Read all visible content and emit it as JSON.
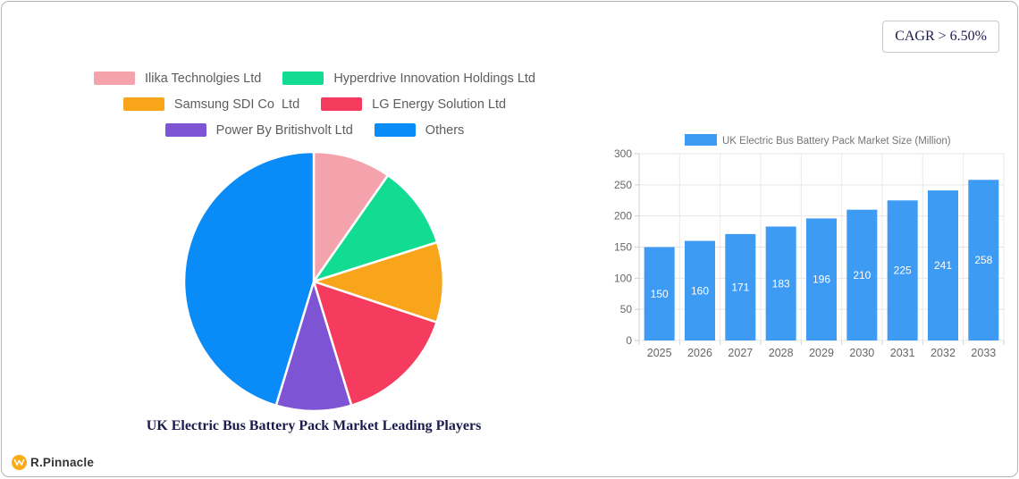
{
  "card": {
    "cagr_badge": "CAGR > 6.50%",
    "brand": {
      "name": "R.Pinnacle",
      "icon": "wave-monogram-icon",
      "icon_color": "#f9ab18"
    }
  },
  "chart_data": [
    {
      "type": "pie",
      "title": "UK Electric Bus Battery Pack Market Leading Players",
      "labels": [
        "Ilika Technolgies Ltd",
        "Hyperdrive Innovation Holdings Ltd",
        "Samsung SDI Co  Ltd",
        "LG Energy Solution Ltd",
        "Power By Britishvolt Ltd",
        "Others"
      ],
      "values": [
        9.7,
        10.4,
        10.0,
        15.2,
        9.4,
        45.3
      ],
      "value_unit": "% (estimated from slice angles, no labels shown)",
      "colors": [
        "#f4a2ac",
        "#12db92",
        "#f9a51b",
        "#f53b5e",
        "#7c54d4",
        "#0a8cf8"
      ],
      "start_angle": "top",
      "direction": "clockwise",
      "slice_border_color": "#ffffff",
      "legend_position": "top"
    },
    {
      "type": "bar",
      "title": "UK Electric Bus Battery Pack Market Size (Million)",
      "categories": [
        "2025",
        "2026",
        "2027",
        "2028",
        "2029",
        "2030",
        "2031",
        "2032",
        "2033"
      ],
      "values": [
        150,
        160,
        171,
        183,
        196,
        210,
        225,
        241,
        258
      ],
      "ylim": [
        0,
        300
      ],
      "y_ticks": [
        0,
        50,
        100,
        150,
        200,
        250,
        300
      ],
      "bar_color": "#3e9bf4",
      "value_label_color": "#ffffff",
      "axis_label_color": "#666666",
      "grid": true,
      "legend_position": "top"
    }
  ]
}
